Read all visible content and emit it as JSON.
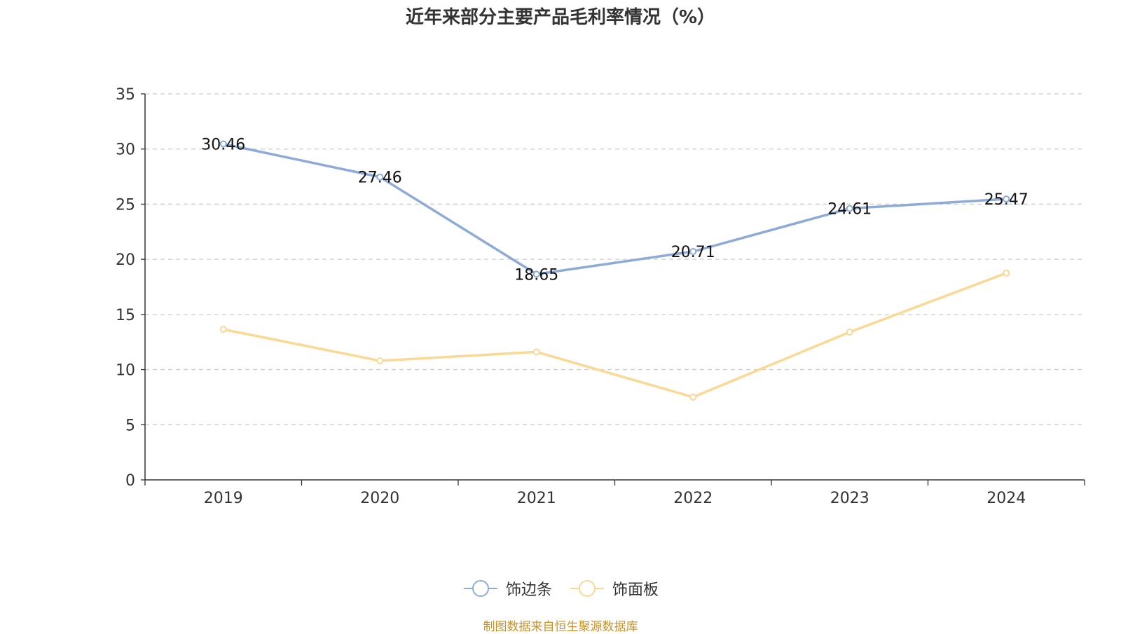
{
  "chart_data": {
    "type": "line",
    "title": "近年来部分主要产品毛利率情况（%）",
    "categories": [
      "2019",
      "2020",
      "2021",
      "2022",
      "2023",
      "2024"
    ],
    "series": [
      {
        "name": "饰边条",
        "color": "#8eabd8",
        "values": [
          30.46,
          27.46,
          18.65,
          20.71,
          24.61,
          25.47
        ],
        "show_labels": true
      },
      {
        "name": "饰面板",
        "color": "#fad896",
        "values": [
          13.65,
          10.8,
          11.6,
          7.5,
          13.4,
          18.75
        ],
        "show_labels": false
      }
    ],
    "ylim": [
      0,
      35
    ],
    "yticks": [
      0,
      5,
      10,
      15,
      20,
      25,
      30,
      35
    ],
    "grid": true,
    "legend": "bottom-center"
  },
  "source_note": "制图数据来自恒生聚源数据库"
}
